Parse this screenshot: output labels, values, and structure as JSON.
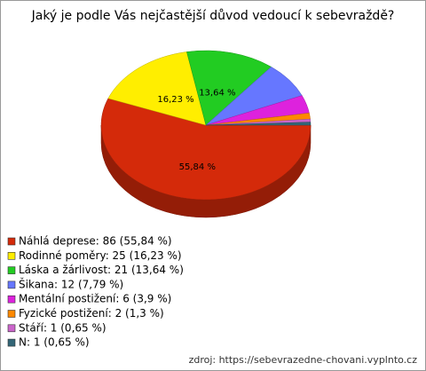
{
  "chart_data": {
    "type": "pie3d",
    "title": "Jaký je podle Vás nejčastější důvod vedoucí k sebevraždě?",
    "categories": [
      "Náhlá deprese: 86 (55,84 %)",
      "Rodinné poměry: 25 (16,23 %)",
      "Láska a žárlivost: 21 (13,64 %)",
      "Šikana: 12 (7,79 %)",
      "Mentální postižení: 6 (3,9 %)",
      "Fyzické postižení: 2 (1,3 %)",
      "Stáří: 1 (0,65 %)",
      "N: 1 (0,65 %)"
    ],
    "values": [
      55.84,
      16.23,
      13.64,
      7.79,
      3.9,
      1.3,
      0.65,
      0.65
    ],
    "value_labels": [
      "55,84 %",
      "16,23 %",
      "13,64 %",
      null,
      null,
      null,
      null,
      null
    ],
    "colors": [
      "#d42a0a",
      "#ffee00",
      "#22cc22",
      "#6677ff",
      "#dd22dd",
      "#ff8800",
      "#cc66cc",
      "#336677"
    ],
    "source": "zdroj: https://sebevrazedne-chovani.vyplnto.cz"
  }
}
